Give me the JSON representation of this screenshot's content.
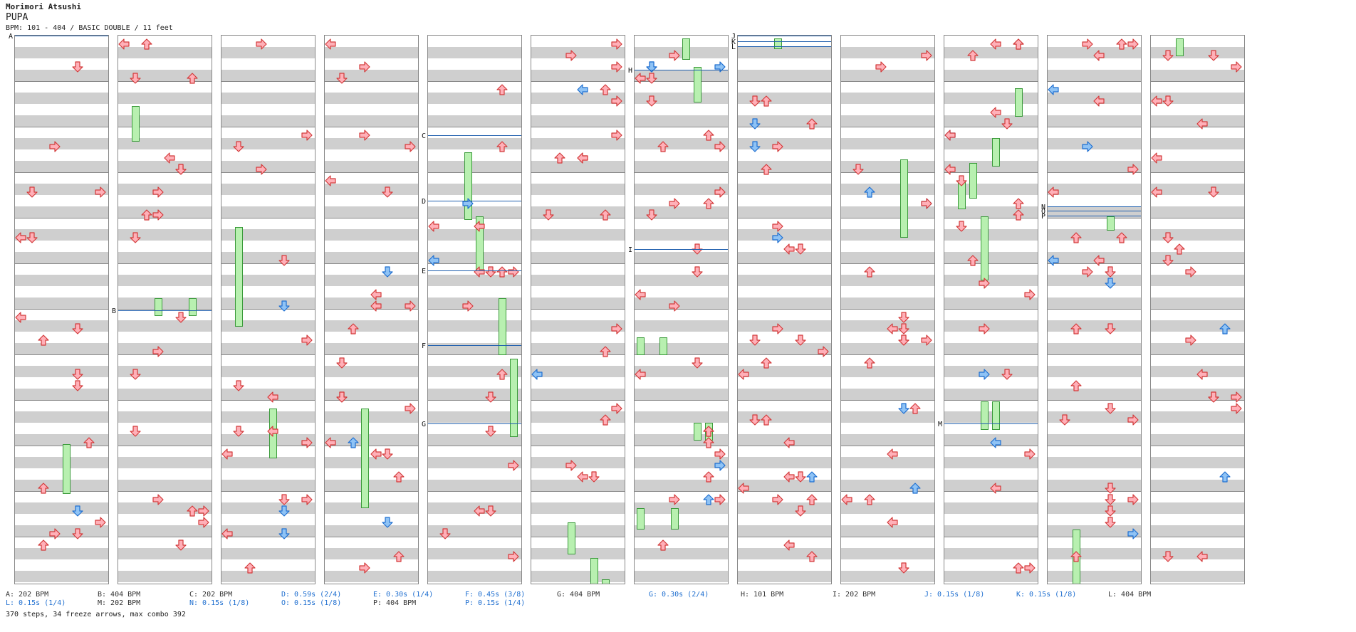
{
  "header": {
    "artist": "Morimori Atsushi",
    "title": "PUPA",
    "info": "BPM: 101 - 404 / BASIC DOUBLE / 11 feet"
  },
  "colors": {
    "red_arrow": "#ffb0b8",
    "red_stroke": "#d23a3a",
    "blue_arrow": "#8fc3f5",
    "blue_stroke": "#1f6fd0",
    "freeze_fill": "#b8f0b0",
    "freeze_stroke": "#3a9a3a",
    "bpm_line": "#1f5fae",
    "stop_text": "#1f6fd0"
  },
  "icons": {
    "step": "arrow-icon",
    "hold": "freeze-arrow-icon"
  },
  "markers": [
    "A",
    "B",
    "C",
    "D",
    "E",
    "F",
    "G",
    "H",
    "I",
    "J",
    "K",
    "L",
    "M",
    "N",
    "O",
    "P"
  ],
  "legend": [
    [
      {
        "text": "A: 202 BPM",
        "stop": false
      },
      {
        "text": "B: 404 BPM",
        "stop": false
      },
      {
        "text": "C: 202 BPM",
        "stop": false
      },
      {
        "text": "D: 0.59s (2/4)",
        "stop": true
      },
      {
        "text": "E: 0.30s (1/4)",
        "stop": true
      },
      {
        "text": "F: 0.45s (3/8)",
        "stop": true
      },
      {
        "text": "G: 404 BPM",
        "stop": false
      },
      {
        "text": "G: 0.30s (2/4)",
        "stop": true
      },
      {
        "text": "H: 101 BPM",
        "stop": false
      },
      {
        "text": "I: 202 BPM",
        "stop": false
      },
      {
        "text": "J: 0.15s (1/8)",
        "stop": true
      },
      {
        "text": "K: 0.15s (1/8)",
        "stop": true
      },
      {
        "text": "L: 404 BPM",
        "stop": false
      }
    ],
    [
      {
        "text": "L: 0.15s (1/4)",
        "stop": true
      },
      {
        "text": "M: 202 BPM",
        "stop": false
      },
      {
        "text": "N: 0.15s (1/8)",
        "stop": true
      },
      {
        "text": "O: 0.15s (1/8)",
        "stop": true
      },
      {
        "text": "P: 404 BPM",
        "stop": false
      },
      {
        "text": "P: 0.15s (1/4)",
        "stop": true
      }
    ]
  ],
  "stats": "370 steps, 34 freeze arrows, max combo 392"
}
